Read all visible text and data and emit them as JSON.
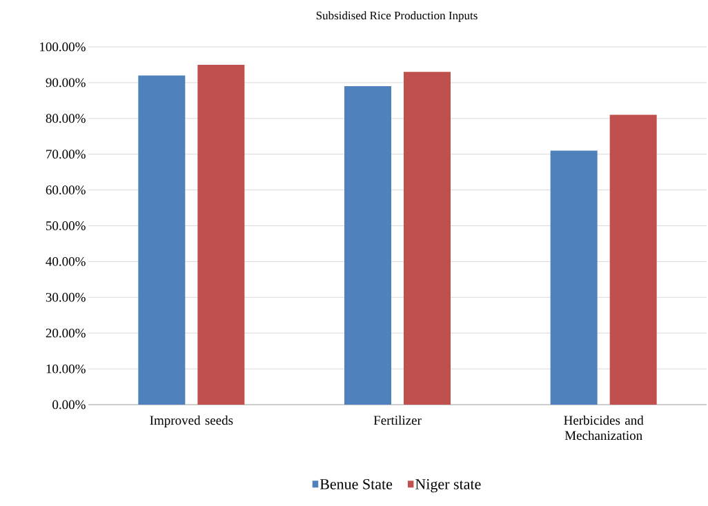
{
  "chart_data": {
    "type": "bar",
    "title": "Subsidised Rice Production Inputs",
    "categories": [
      "Improved seeds",
      "Fertilizer",
      "Herbicides and Mechanization"
    ],
    "series": [
      {
        "name": "Benue State",
        "color": "#4f81bd",
        "values": [
          92,
          89,
          71
        ]
      },
      {
        "name": "Niger state",
        "color": "#c0504d",
        "values": [
          95,
          93,
          81
        ]
      }
    ],
    "ylim": [
      0,
      100
    ],
    "yticks": [
      {
        "value": 0,
        "label": "0.00%"
      },
      {
        "value": 10,
        "label": "10.00%"
      },
      {
        "value": 20,
        "label": "20.00%"
      },
      {
        "value": 30,
        "label": "30.00%"
      },
      {
        "value": 40,
        "label": "40.00%"
      },
      {
        "value": 50,
        "label": "50.00%"
      },
      {
        "value": 60,
        "label": "60.00%"
      },
      {
        "value": 70,
        "label": "70.00%"
      },
      {
        "value": 80,
        "label": "80.00%"
      },
      {
        "value": 90,
        "label": "90.00%"
      },
      {
        "value": 100,
        "label": "100.00%"
      }
    ],
    "grid": "y",
    "legend": "bottom"
  }
}
